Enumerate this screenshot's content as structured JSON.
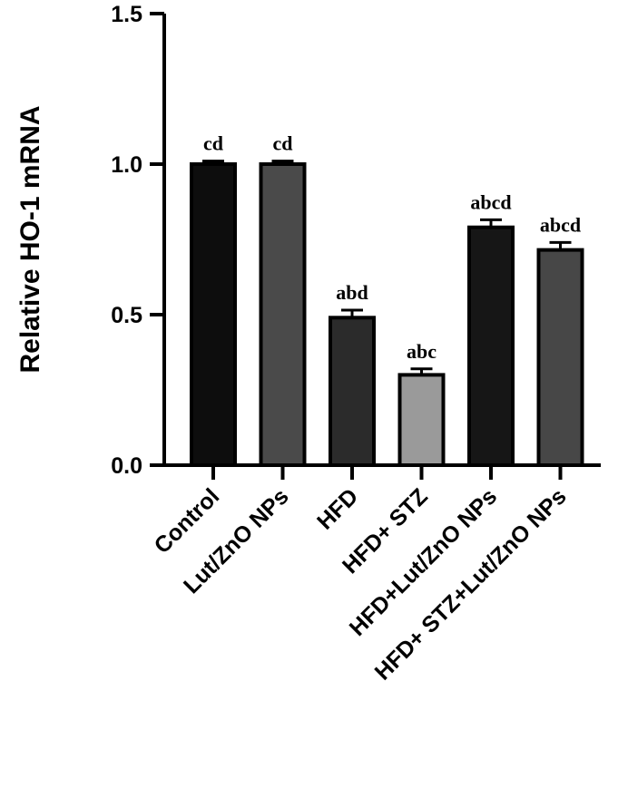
{
  "chart_data": {
    "type": "bar",
    "title": "",
    "xlabel": "",
    "ylabel": "Relative HO-1 mRNA",
    "ylim": [
      0,
      1.5
    ],
    "yticks": [
      0.0,
      0.5,
      1.0,
      1.5
    ],
    "ytick_labels": [
      "0.0",
      "0.5",
      "1.0",
      "1.5"
    ],
    "grid": false,
    "categories": [
      "Control",
      "Lut/ZnO NPs",
      "HFD",
      "HFD+ STZ",
      "HFD+Lut/ZnO NPs",
      "HFD+ STZ+Lut/ZnO NPs"
    ],
    "values": [
      1.0,
      1.0,
      0.49,
      0.3,
      0.79,
      0.715
    ],
    "errors": [
      0.01,
      0.01,
      0.025,
      0.02,
      0.025,
      0.025
    ],
    "annotations": [
      "cd",
      "cd",
      "abd",
      "abc",
      "abcd",
      "abcd"
    ],
    "bar_colors": [
      "#0d0d0d",
      "#4a4a4a",
      "#2b2b2b",
      "#9a9a9a",
      "#161616",
      "#474747"
    ]
  }
}
